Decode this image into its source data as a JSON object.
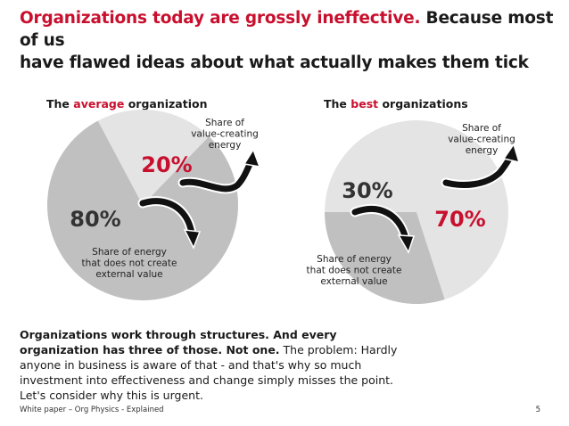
{
  "title": {
    "accent": "Organizations today are grossly ineffective.",
    "rest_line1": " Because most of us",
    "rest_line2": "have flawed ideas about what actually makes them tick"
  },
  "colors": {
    "accent": "#c8102e",
    "slice_dark": "#c0c0c0",
    "slice_light": "#e4e4e4",
    "label_dark": "#333333"
  },
  "chart_data": [
    {
      "type": "pie",
      "title_prefix": "The ",
      "title_accent": "average",
      "title_suffix": " organization",
      "slices": [
        {
          "name": "Share of energy that does not create external value",
          "value": 80,
          "label": "80%",
          "caption": [
            "Share of energy",
            "that does not create",
            "external value"
          ]
        },
        {
          "name": "Share of value-creating energy",
          "value": 20,
          "label": "20%",
          "caption": [
            "Share of",
            "value-creating",
            "energy"
          ]
        }
      ]
    },
    {
      "type": "pie",
      "title_prefix": "The ",
      "title_accent": "best",
      "title_suffix": " organizations",
      "slices": [
        {
          "name": "Share of energy that does not create external value",
          "value": 30,
          "label": "30%",
          "caption": [
            "Share of energy",
            "that does not create",
            "external value"
          ]
        },
        {
          "name": "Share of value-creating energy",
          "value": 70,
          "label": "70%",
          "caption": [
            "Share of",
            "value-creating",
            "energy"
          ]
        }
      ]
    }
  ],
  "body": {
    "strong": "Organizations work through structures. And every organization has three of those. Not one.",
    "rest": " The problem: Hardly anyone in business is aware of that - and that's why so much investment into effectiveness and change simply misses the point. Let's consider why this is urgent."
  },
  "footer": {
    "left": "White paper – Org Physics - Explained",
    "page": "5"
  }
}
